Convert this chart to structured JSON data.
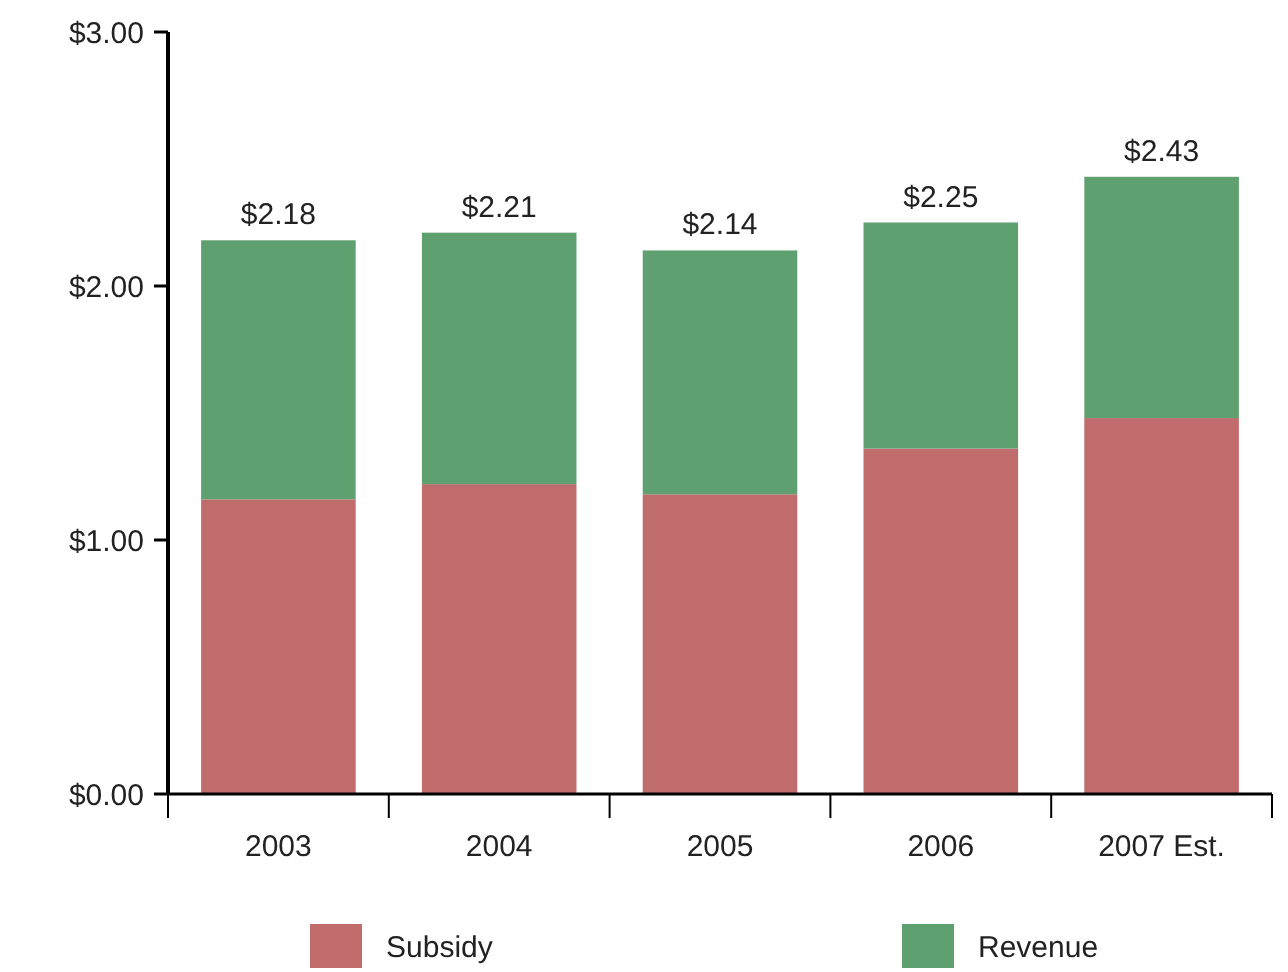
{
  "chart_data": {
    "type": "bar",
    "stacked": true,
    "categories": [
      "2003",
      "2004",
      "2005",
      "2006",
      "2007 Est."
    ],
    "series": [
      {
        "name": "Subsidy",
        "color": "#c06c6c",
        "values": [
          1.16,
          1.22,
          1.18,
          1.36,
          1.48
        ]
      },
      {
        "name": "Revenue",
        "color": "#5fa070",
        "values": [
          1.02,
          0.99,
          0.96,
          0.89,
          0.95
        ]
      }
    ],
    "totals": [
      "$2.18",
      "$2.21",
      "$2.14",
      "$2.25",
      "$2.43"
    ],
    "ylim": [
      0,
      3
    ],
    "yticks": [
      {
        "value": 0,
        "label": "$0.00"
      },
      {
        "value": 1,
        "label": "$1.00"
      },
      {
        "value": 2,
        "label": "$2.00"
      },
      {
        "value": 3,
        "label": "$3.00"
      }
    ],
    "grid": false,
    "legend": "bottom"
  }
}
